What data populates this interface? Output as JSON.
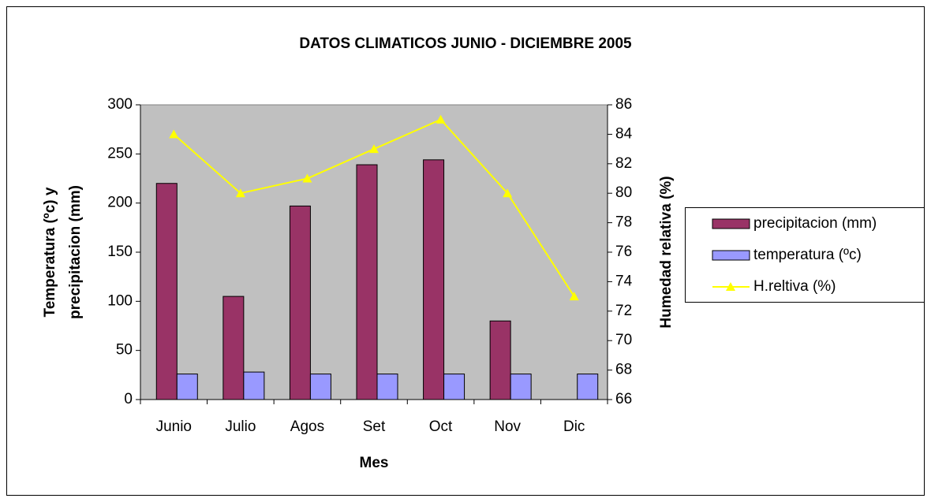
{
  "chart_data": {
    "type": "bar",
    "title": "DATOS CLIMATICOS JUNIO - DICIEMBRE 2005",
    "xlabel": "Mes",
    "ylabel": [
      "Temperatura (ºc) y",
      "precipitacion (mm)"
    ],
    "y2label": "Humedad relativa (%)",
    "categories": [
      "Junio",
      "Julio",
      "Agos",
      "Set",
      "Oct",
      "Nov",
      "Dic"
    ],
    "series": [
      {
        "name": "precipitacion (mm)",
        "type": "bar",
        "color": "#993366",
        "values": [
          220,
          105,
          197,
          239,
          244,
          80,
          0
        ]
      },
      {
        "name": "temperatura (ºc)",
        "type": "bar",
        "color": "#9999ff",
        "values": [
          26,
          28,
          26,
          26,
          26,
          26,
          26
        ]
      },
      {
        "name": "H.reltiva (%)",
        "type": "line",
        "axis": "y2",
        "color": "#ffff00",
        "values": [
          84,
          80,
          81,
          83,
          85,
          80,
          73
        ]
      }
    ],
    "ylim": [
      0,
      300
    ],
    "yticks": [
      0,
      50,
      100,
      150,
      200,
      250,
      300
    ],
    "y2lim": [
      66,
      86
    ],
    "y2ticks": [
      66,
      68,
      70,
      72,
      74,
      76,
      78,
      80,
      82,
      84,
      86
    ],
    "legend": "right",
    "plot_background": "#c0c0c0"
  }
}
